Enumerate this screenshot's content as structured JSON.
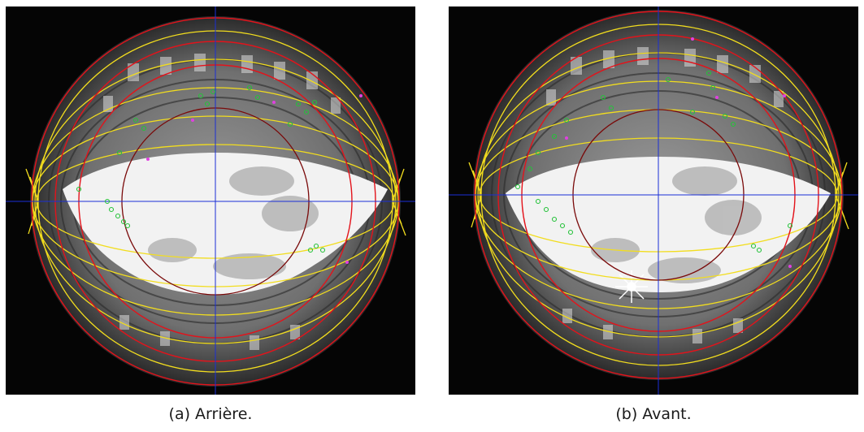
{
  "figure": {
    "panels": [
      {
        "id": "a",
        "caption": "(a) Arrière."
      },
      {
        "id": "b",
        "caption": "(b) Avant."
      }
    ],
    "colors": {
      "red_circle": "#e3131b",
      "dark_red_circle": "#7a0a0a",
      "yellow_curve": "#f2dd1e",
      "blue_axis": "#1b2fd6",
      "feature_point": "#25c23a",
      "magenta_point": "#e040e0",
      "sky": "#f4f4f4",
      "building": "#6a6a6a"
    }
  }
}
